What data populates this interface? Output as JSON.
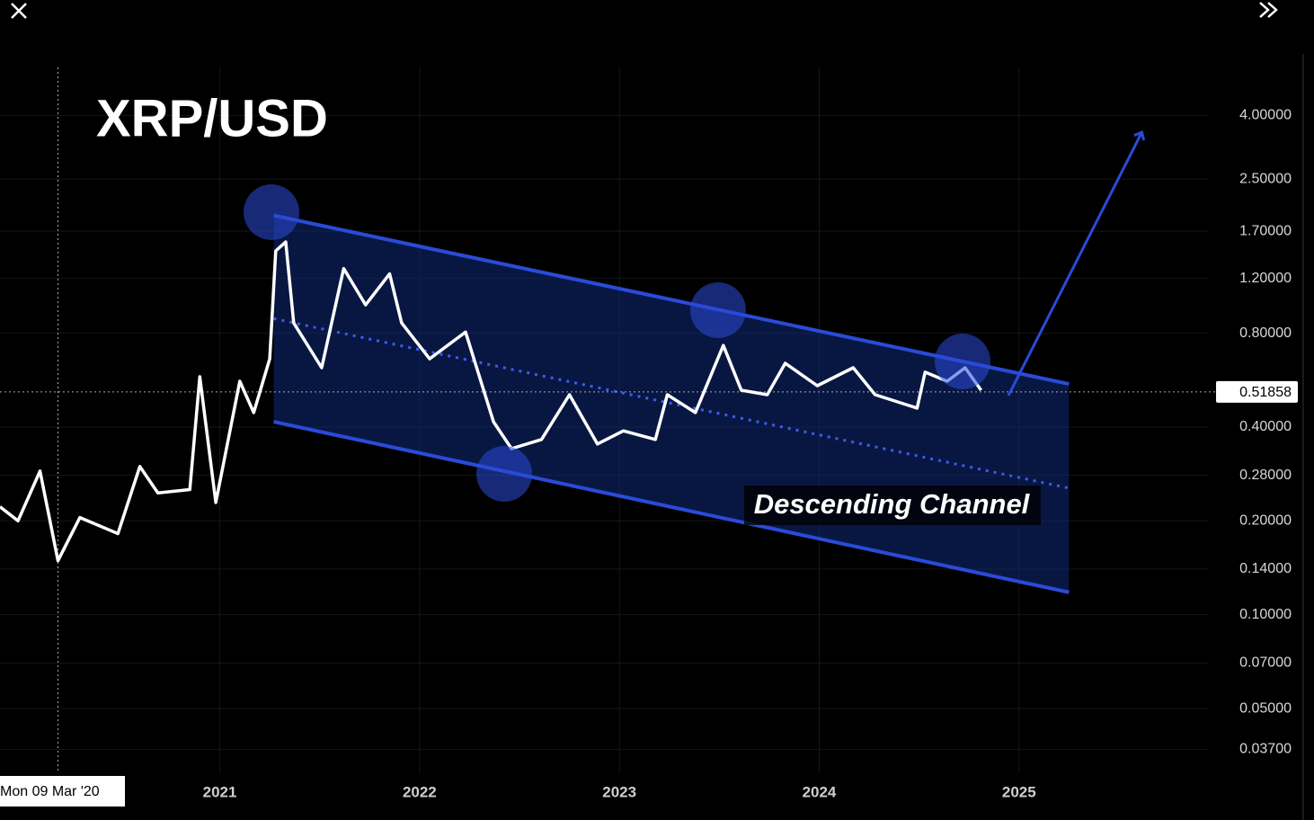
{
  "chart_data": {
    "type": "line",
    "title": "XRP/USD",
    "log_scale": true,
    "grid": true,
    "color": "#ffffff",
    "x": [
      2019.9,
      2019.99,
      2020.1,
      2020.19,
      2020.3,
      2020.49,
      2020.6,
      2020.69,
      2020.85,
      2020.9,
      2020.98,
      2021.1,
      2021.17,
      2021.25,
      2021.28,
      2021.33,
      2021.37,
      2021.51,
      2021.62,
      2021.73,
      2021.85,
      2021.91,
      2022.05,
      2022.23,
      2022.37,
      2022.46,
      2022.61,
      2022.75,
      2022.89,
      2023.02,
      2023.18,
      2023.24,
      2023.38,
      2023.52,
      2023.61,
      2023.74,
      2023.83,
      2023.99,
      2024.17,
      2024.28,
      2024.49,
      2024.53,
      2024.64,
      2024.73,
      2024.81
    ],
    "values": [
      0.222,
      0.2,
      0.289,
      0.149,
      0.205,
      0.182,
      0.299,
      0.246,
      0.252,
      0.58,
      0.229,
      0.561,
      0.445,
      0.662,
      1.47,
      1.57,
      0.863,
      0.62,
      1.29,
      0.986,
      1.24,
      0.863,
      0.662,
      0.807,
      0.416,
      0.341,
      0.365,
      0.508,
      0.353,
      0.389,
      0.365,
      0.508,
      0.445,
      0.731,
      0.525,
      0.508,
      0.641,
      0.543,
      0.62,
      0.508,
      0.46,
      0.6,
      0.561,
      0.62,
      0.525
    ],
    "xlim": [
      2019.9,
      2025.95
    ],
    "xticks": [
      2021,
      2022,
      2023,
      2024,
      2025
    ],
    "ylim": [
      0.031,
      5.7
    ],
    "yticks": [
      {
        "value": 0.037,
        "label": "0.03700"
      },
      {
        "value": 0.05,
        "label": "0.05000"
      },
      {
        "value": 0.07,
        "label": "0.07000"
      },
      {
        "value": 0.1,
        "label": "0.10000"
      },
      {
        "value": 0.14,
        "label": "0.14000"
      },
      {
        "value": 0.2,
        "label": "0.20000"
      },
      {
        "value": 0.28,
        "label": "0.28000"
      },
      {
        "value": 0.4,
        "label": "0.40000"
      },
      {
        "value": 0.8,
        "label": "0.80000"
      },
      {
        "value": 1.2,
        "label": "1.20000"
      },
      {
        "value": 1.7,
        "label": "1.70000"
      },
      {
        "value": 2.5,
        "label": "2.50000"
      },
      {
        "value": 4,
        "label": "4.00000"
      }
    ],
    "crosshair": {
      "x": 2020.19,
      "x_label": "Mon 09 Mar '20",
      "y": 0.51858,
      "y_label": "0.51858"
    },
    "channel": {
      "label": "Descending Channel",
      "upper": [
        [
          2021.27,
          1.91
        ],
        [
          2025.25,
          0.55
        ]
      ],
      "lower": [
        [
          2021.27,
          0.416
        ],
        [
          2025.25,
          0.118
        ]
      ]
    }
  }
}
